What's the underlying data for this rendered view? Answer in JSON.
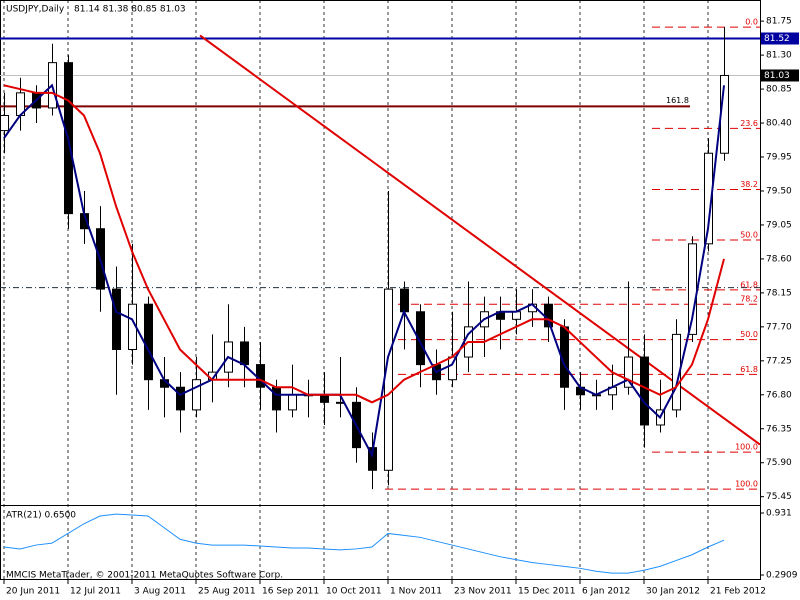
{
  "chart_data": {
    "type": "candlestick",
    "title": "USDJPY,Daily",
    "ohlc_text": "81.14 81.38 80.85 81.03",
    "footer": "MMCIS MetaTrader, © 2001-2011 MetaQuotes Software Corp.",
    "candle_up_color": "#ffffff",
    "candle_down_color": "#000000",
    "candles": [
      [
        80.3,
        80.8,
        80.0,
        80.5
      ],
      [
        80.5,
        81.0,
        80.3,
        80.8
      ],
      [
        80.8,
        80.9,
        80.4,
        80.6
      ],
      [
        80.6,
        81.45,
        80.5,
        81.2
      ],
      [
        81.2,
        81.3,
        79.0,
        79.2
      ],
      [
        79.2,
        79.5,
        78.8,
        79.0
      ],
      [
        79.0,
        79.3,
        77.9,
        78.2
      ],
      [
        78.2,
        78.5,
        76.8,
        77.4
      ],
      [
        77.4,
        78.8,
        77.2,
        78.0
      ],
      [
        78.0,
        78.1,
        76.6,
        77.0
      ],
      [
        77.0,
        77.3,
        76.5,
        76.9
      ],
      [
        76.9,
        77.1,
        76.3,
        76.6
      ],
      [
        76.6,
        77.3,
        76.5,
        77.0
      ],
      [
        77.0,
        77.6,
        76.7,
        77.1
      ],
      [
        77.1,
        78.0,
        76.9,
        77.5
      ],
      [
        77.5,
        77.7,
        76.9,
        77.2
      ],
      [
        77.2,
        77.5,
        76.6,
        76.9
      ],
      [
        76.9,
        77.0,
        76.3,
        76.6
      ],
      [
        76.6,
        77.2,
        76.5,
        76.8
      ],
      [
        76.8,
        77.0,
        76.5,
        76.8
      ],
      [
        76.8,
        77.1,
        76.4,
        76.7
      ],
      [
        76.7,
        77.3,
        76.5,
        76.7
      ],
      [
        76.7,
        76.9,
        75.9,
        76.1
      ],
      [
        76.1,
        76.3,
        75.55,
        75.8
      ],
      [
        75.8,
        79.5,
        75.6,
        78.2
      ],
      [
        78.2,
        78.3,
        77.4,
        77.9
      ],
      [
        77.9,
        78.0,
        76.9,
        77.2
      ],
      [
        77.2,
        77.4,
        76.8,
        77.0
      ],
      [
        77.0,
        77.9,
        76.9,
        77.3
      ],
      [
        77.3,
        78.3,
        77.1,
        77.7
      ],
      [
        77.7,
        78.1,
        77.3,
        77.9
      ],
      [
        77.9,
        78.1,
        77.4,
        77.8
      ],
      [
        77.8,
        78.2,
        77.6,
        77.9
      ],
      [
        77.9,
        78.2,
        77.7,
        78.0
      ],
      [
        78.0,
        78.1,
        77.5,
        77.7
      ],
      [
        77.7,
        77.8,
        76.6,
        76.9
      ],
      [
        76.9,
        77.1,
        76.6,
        76.8
      ],
      [
        76.8,
        77.0,
        76.6,
        76.8
      ],
      [
        76.8,
        77.2,
        76.6,
        76.9
      ],
      [
        76.9,
        78.3,
        76.8,
        77.3
      ],
      [
        77.3,
        77.6,
        76.1,
        76.4
      ],
      [
        76.4,
        77.0,
        76.3,
        76.6
      ],
      [
        76.6,
        77.8,
        76.5,
        77.6
      ],
      [
        77.6,
        78.9,
        77.5,
        78.8
      ],
      [
        78.8,
        80.2,
        78.7,
        80.0
      ],
      [
        80.0,
        81.67,
        79.9,
        81.03
      ]
    ],
    "series": [
      {
        "color": "#000080",
        "values": [
          80.2,
          80.5,
          80.7,
          80.9,
          80.2,
          79.2,
          78.6,
          77.9,
          77.8,
          77.4,
          77.0,
          76.8,
          76.9,
          77.0,
          77.3,
          77.2,
          77.0,
          76.8,
          76.8,
          76.8,
          76.8,
          76.8,
          76.4,
          76.0,
          77.3,
          77.9,
          77.5,
          77.1,
          77.2,
          77.6,
          77.8,
          77.9,
          77.9,
          78.0,
          77.8,
          77.2,
          76.9,
          76.8,
          76.9,
          77.0,
          76.7,
          76.5,
          76.9,
          77.8,
          79.0,
          80.9
        ]
      },
      {
        "color": "#e00000",
        "values": [
          80.9,
          80.85,
          80.8,
          80.8,
          80.7,
          80.5,
          80.0,
          79.3,
          78.7,
          78.2,
          77.8,
          77.4,
          77.2,
          77.0,
          77.0,
          77.0,
          77.0,
          76.9,
          76.9,
          76.8,
          76.8,
          76.8,
          76.8,
          76.7,
          76.8,
          77.0,
          77.1,
          77.2,
          77.3,
          77.5,
          77.5,
          77.6,
          77.7,
          77.8,
          77.8,
          77.7,
          77.5,
          77.3,
          77.1,
          77.0,
          76.9,
          76.8,
          76.9,
          77.2,
          77.8,
          78.6
        ]
      }
    ],
    "xlim": [
      -0.25,
      47.25
    ],
    "xticks": [
      {
        "value": 0,
        "label": "20 Jun 2011"
      },
      {
        "value": 4,
        "label": "12 Jul 2011"
      },
      {
        "value": 8,
        "label": "3 Aug 2011"
      },
      {
        "value": 12,
        "label": "25 Aug 2011"
      },
      {
        "value": 16,
        "label": "16 Sep 2011"
      },
      {
        "value": 20,
        "label": "10 Oct 2011"
      },
      {
        "value": 24,
        "label": "1 Nov 2011"
      },
      {
        "value": 28,
        "label": "23 Nov 2011"
      },
      {
        "value": 32,
        "label": "15 Dec 2011"
      },
      {
        "value": 36,
        "label": "6 Jan 2012"
      },
      {
        "value": 40,
        "label": "30 Jan 2012"
      },
      {
        "value": 44,
        "label": "21 Feb 2012"
      }
    ],
    "ylim": [
      75.34,
      82.03
    ],
    "yticks": [
      81.75,
      {
        "value": 81.3,
        "label": "81.30"
      },
      80.85,
      {
        "value": 80.4,
        "label": "80.40"
      },
      79.95,
      {
        "value": 79.5,
        "label": "79.50"
      },
      79.05,
      {
        "value": 78.6,
        "label": "78.60"
      },
      78.15,
      {
        "value": 77.7,
        "label": "77.70"
      },
      77.25,
      {
        "value": 76.8,
        "label": "76.80"
      },
      76.35,
      {
        "value": 75.9,
        "label": "75.90"
      },
      75.45
    ],
    "blue_line": {
      "value": 81.52,
      "color": "#0000a0"
    },
    "bid_line": {
      "value": 81.03,
      "color": "#c0c0c0"
    },
    "extension_line": {
      "value": 80.62,
      "label": "161.8",
      "color": "#800000"
    },
    "dashdot_line": {
      "value": 78.22
    },
    "trendline": {
      "x": [
        12.25,
        47.25
      ],
      "y": [
        81.56,
        76.14
      ],
      "color": "#e00000"
    },
    "fib_color": "#e00000",
    "fib_sets": [
      {
        "levels": [
          {
            "label": "0.0",
            "value": 81.67
          },
          {
            "label": "23.6",
            "value": 80.33
          },
          {
            "label": "38.2",
            "value": 79.52
          },
          {
            "label": "50.0",
            "value": 78.85
          },
          {
            "label": "61.8",
            "value": 78.19
          },
          {
            "label": "100.0",
            "value": 76.04
          }
        ]
      },
      {
        "levels": [
          {
            "label": "78.2",
            "value": 78.0
          },
          {
            "label": "50.0",
            "value": 77.53
          },
          {
            "label": "61.8",
            "value": 77.07
          },
          {
            "label": "100.0",
            "value": 75.55
          }
        ]
      }
    ],
    "indicator": {
      "label": "ATR(21) 0.6500",
      "color": "#1e90ff",
      "ylim": [
        0.2393,
        0.993
      ],
      "yticks": [
        0.931,
        0.2909
      ],
      "values": [
        0.58,
        0.56,
        0.6,
        0.62,
        0.72,
        0.82,
        0.9,
        0.92,
        0.91,
        0.9,
        0.78,
        0.66,
        0.62,
        0.6,
        0.6,
        0.6,
        0.59,
        0.58,
        0.57,
        0.57,
        0.56,
        0.55,
        0.56,
        0.58,
        0.72,
        0.7,
        0.68,
        0.64,
        0.6,
        0.56,
        0.52,
        0.48,
        0.45,
        0.42,
        0.4,
        0.38,
        0.36,
        0.33,
        0.31,
        0.31,
        0.34,
        0.38,
        0.44,
        0.5,
        0.58,
        0.65
      ]
    }
  }
}
